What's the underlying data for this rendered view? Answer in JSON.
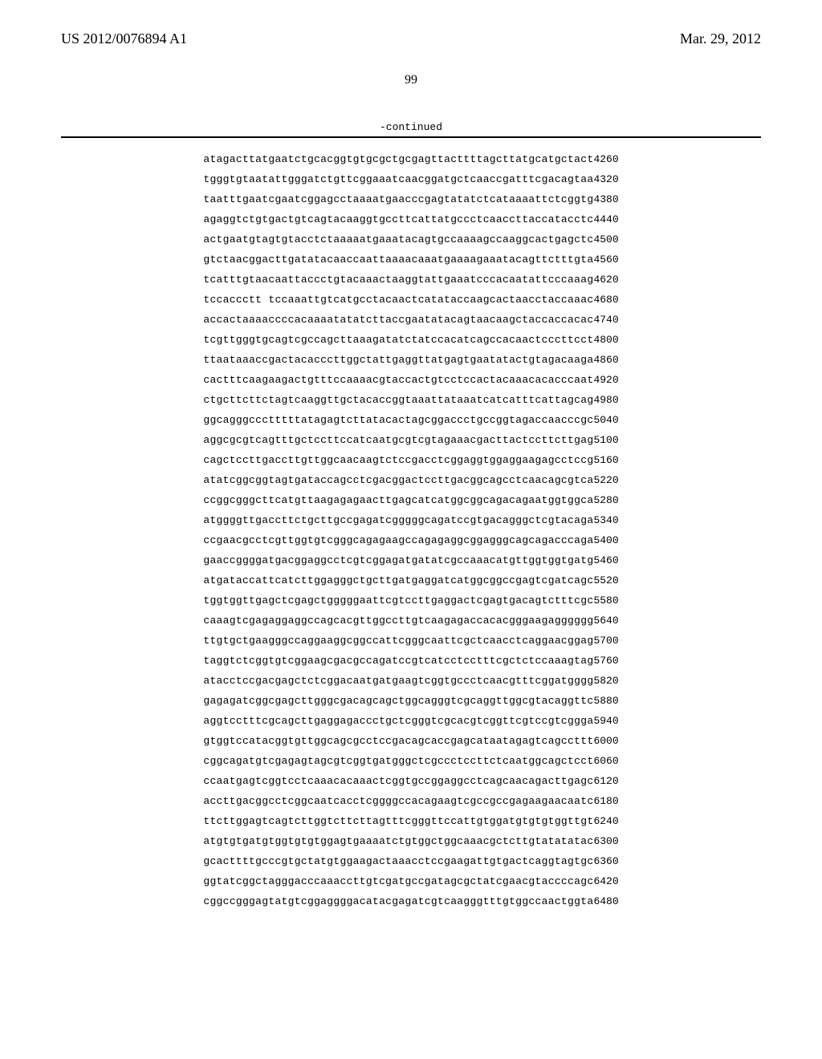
{
  "header": {
    "patent_id": "US 2012/0076894 A1",
    "date": "Mar. 29, 2012",
    "page_number": "99"
  },
  "sequence": {
    "continued_label": "-continued",
    "font_family": "Courier New",
    "font_size": 13,
    "divider_color": "#000000",
    "rows": [
      {
        "blocks": [
          "atagacttat",
          "gaatctgcac",
          "ggtgtgcgct",
          "gcgagttact",
          "tttagcttat",
          "gcatgctact"
        ],
        "pos": "4260"
      },
      {
        "blocks": [
          "tgggtgtaat",
          "attgggatct",
          "gttcggaaat",
          "caacggatgc",
          "tcaaccgatt",
          "tcgacagtaa"
        ],
        "pos": "4320"
      },
      {
        "blocks": [
          "taatttgaat",
          "cgaatcggag",
          "cctaaaatga",
          "acccgagtat",
          "atctcataaa",
          "attctcggtg"
        ],
        "pos": "4380"
      },
      {
        "blocks": [
          "agaggtctgt",
          "gactgtcagt",
          "acaaggtgcc",
          "ttcattatgc",
          "cctcaacctt",
          "accatacctc"
        ],
        "pos": "4440"
      },
      {
        "blocks": [
          "actgaatgta",
          "gtgtacctct",
          "aaaaatgaaa",
          "tacagtgcca",
          "aaagccaagg",
          "cactgagctc"
        ],
        "pos": "4500"
      },
      {
        "blocks": [
          "gtctaacgga",
          "cttgatatac",
          "aaccaattaa",
          "aacaaatgaa",
          "aagaaataca",
          "gttctttgta"
        ],
        "pos": "4560"
      },
      {
        "blocks": [
          "tcatttgtaa",
          "caattaccct",
          "gtacaaacta",
          "aggtattgaa",
          "atcccacaat",
          "attcccaaag"
        ],
        "pos": "4620"
      },
      {
        "blocks": [
          "tccaccctt",
          "tccaaattgt",
          "catgcctaca",
          "actcatatac",
          "caagcactaa",
          "cctaccaaac"
        ],
        "pos": "4680"
      },
      {
        "blocks": [
          "accactaaaa",
          "ccccacaaaa",
          "tatatcttac",
          "cgaatataca",
          "gtaacaagct",
          "accaccacac"
        ],
        "pos": "4740"
      },
      {
        "blocks": [
          "tcgttgggtg",
          "cagtcgccag",
          "cttaaagata",
          "tctatccaca",
          "tcagccacaa",
          "ctcccttcct"
        ],
        "pos": "4800"
      },
      {
        "blocks": [
          "ttaataaacc",
          "gactacaccc",
          "ttggctattg",
          "aggttatgag",
          "tgaatatact",
          "gtagacaaga"
        ],
        "pos": "4860"
      },
      {
        "blocks": [
          "cactttcaag",
          "aagactgttt",
          "ccaaaacgta",
          "ccactgtcct",
          "ccactacaaa",
          "cacacccaat"
        ],
        "pos": "4920"
      },
      {
        "blocks": [
          "ctgcttcttc",
          "tagtcaaggt",
          "tgctacaccg",
          "gtaaattata",
          "aatcatcatt",
          "tcattagcag"
        ],
        "pos": "4980"
      },
      {
        "blocks": [
          "ggcagggccc",
          "tttttataga",
          "gtcttataca",
          "ctagcggacc",
          "ctgccggtag",
          "accaacccgc"
        ],
        "pos": "5040"
      },
      {
        "blocks": [
          "aggcgcgtca",
          "gtttgctcct",
          "tccatcaatg",
          "cgtcgtagaa",
          "acgacttact",
          "ccttcttgag"
        ],
        "pos": "5100"
      },
      {
        "blocks": [
          "cagctccttg",
          "accttgttgg",
          "caacaagtct",
          "ccgacctcgg",
          "aggtggagga",
          "agagcctccg"
        ],
        "pos": "5160"
      },
      {
        "blocks": [
          "atatcggcgg",
          "tagtgatacc",
          "agcctcgacg",
          "gactccttga",
          "cggcagcctc",
          "aacagcgtca"
        ],
        "pos": "5220"
      },
      {
        "blocks": [
          "ccggcgggct",
          "tcatgttaag",
          "agagaacttg",
          "agcatcatgg",
          "cggcagacag",
          "aatggtggca"
        ],
        "pos": "5280"
      },
      {
        "blocks": [
          "atggggttga",
          "ccttctgctt",
          "gccgagatcg",
          "ggggcagatc",
          "cgtgacaggg",
          "ctcgtacaga"
        ],
        "pos": "5340"
      },
      {
        "blocks": [
          "ccgaacgcct",
          "cgttggtgtc",
          "gggcagagaa",
          "gccagagagg",
          "cggagggcag",
          "cagacccaga"
        ],
        "pos": "5400"
      },
      {
        "blocks": [
          "gaaccgggga",
          "tgacggaggc",
          "ctcgtcggag",
          "atgatatcgc",
          "caaacatgtt",
          "ggtggtgatg"
        ],
        "pos": "5460"
      },
      {
        "blocks": [
          "atgataccat",
          "tcatcttgga",
          "gggctgcttg",
          "atgaggatca",
          "tggcggccga",
          "gtcgatcagc"
        ],
        "pos": "5520"
      },
      {
        "blocks": [
          "tggtggttga",
          "gctcgagctg",
          "ggggaattcg",
          "tccttgagga",
          "ctcgagtgac",
          "agtctttcgc"
        ],
        "pos": "5580"
      },
      {
        "blocks": [
          "caaagtcgag",
          "aggaggccag",
          "cacgttggcc",
          "ttgtcaagag",
          "accacacggg",
          "aagagggggg"
        ],
        "pos": "5640"
      },
      {
        "blocks": [
          "ttgtgctgaa",
          "gggccaggaa",
          "ggcggccatt",
          "cgggcaattc",
          "gctcaacctc",
          "aggaacggag"
        ],
        "pos": "5700"
      },
      {
        "blocks": [
          "taggtctcgg",
          "tgtcggaagc",
          "gacgccagat",
          "ccgtcatcct",
          "cctttcgctc",
          "tccaaagtag"
        ],
        "pos": "5760"
      },
      {
        "blocks": [
          "atacctccga",
          "cgagctctcg",
          "gacaatgatg",
          "aagtcggtgc",
          "cctcaacgtt",
          "tcggatgggg"
        ],
        "pos": "5820"
      },
      {
        "blocks": [
          "gagagatcgg",
          "cgagcttggg",
          "cgacagcagc",
          "tggcagggtc",
          "gcaggttggc",
          "gtacaggttc"
        ],
        "pos": "5880"
      },
      {
        "blocks": [
          "aggtcctttc",
          "gcagcttgag",
          "gagaccctgc",
          "tcgggtcgca",
          "cgtcggttcg",
          "tccgtcggga"
        ],
        "pos": "5940"
      },
      {
        "blocks": [
          "gtggtccata",
          "cggtgttggc",
          "agcgcctccg",
          "acagcaccga",
          "gcataataga",
          "gtcagccttt"
        ],
        "pos": "6000"
      },
      {
        "blocks": [
          "cggcagatgt",
          "cgagagtagc",
          "gtcggtgatg",
          "ggctcgccct",
          "ccttctcaat",
          "ggcagctcct"
        ],
        "pos": "6060"
      },
      {
        "blocks": [
          "ccaatgagtc",
          "ggtcctcaaa",
          "cacaaactcg",
          "gtgccggagg",
          "cctcagcaac",
          "agacttgagc"
        ],
        "pos": "6120"
      },
      {
        "blocks": [
          "accttgacgg",
          "cctcggcaat",
          "cacctcgggg",
          "ccacagaagt",
          "cgccgccgag",
          "aagaacaatc"
        ],
        "pos": "6180"
      },
      {
        "blocks": [
          "ttcttggagt",
          "cagtcttggt",
          "cttcttagtt",
          "tcgggttcca",
          "ttgtggatgt",
          "gtgtggttgt"
        ],
        "pos": "6240"
      },
      {
        "blocks": [
          "atgtgtgatg",
          "tggtgtgtgg",
          "agtgaaaatc",
          "tgtggctggc",
          "aaacgctctt",
          "gtatatatac"
        ],
        "pos": "6300"
      },
      {
        "blocks": [
          "gcacttttgc",
          "ccgtgctatg",
          "tggaagacta",
          "aacctccgaa",
          "gattgtgact",
          "caggtagtgc"
        ],
        "pos": "6360"
      },
      {
        "blocks": [
          "ggtatcggct",
          "agggacccaa",
          "accttgtcga",
          "tgccgatagc",
          "gctatcgaac",
          "gtaccccagc"
        ],
        "pos": "6420"
      },
      {
        "blocks": [
          "cggccgggag",
          "tatgtcggag",
          "gggacatacg",
          "agatcgtcaa",
          "gggtttgtgg",
          "ccaactggta"
        ],
        "pos": "6480"
      }
    ]
  }
}
